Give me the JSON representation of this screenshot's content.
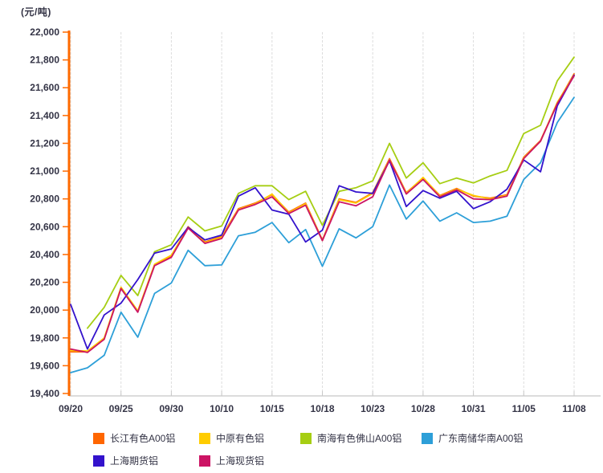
{
  "chart_data": {
    "type": "line",
    "ylabel": "(元/吨)",
    "ylim": [
      19400,
      22000
    ],
    "ytick_step": 200,
    "y_tick_labels": [
      "22,000",
      "21,800",
      "21,600",
      "21,400",
      "21,200",
      "21,000",
      "20,800",
      "20,600",
      "20,400",
      "20,200",
      "20,000",
      "19,800",
      "19,600",
      "19,400"
    ],
    "x_tick_labels": [
      "09/20",
      "09/25",
      "09/30",
      "10/10",
      "10/15",
      "10/18",
      "10/23",
      "10/28",
      "10/31",
      "11/05",
      "11/08"
    ],
    "points_per_interval": 3,
    "grid": "vertical-dashed",
    "legend_position": "bottom",
    "axis_color": "#FF6A00",
    "text_color": "#333345",
    "series": [
      {
        "name": "长江有色A00铝",
        "color": "#FF6600",
        "values": [
          19700,
          19700,
          19795,
          20160,
          19990,
          20325,
          20390,
          20600,
          20490,
          20530,
          20730,
          20770,
          20830,
          20705,
          20770,
          20505,
          20800,
          20775,
          20845,
          21090,
          20845,
          20950,
          20825,
          20875,
          20820,
          20805,
          20830,
          21100,
          21220,
          21490,
          21700
        ]
      },
      {
        "name": "中原有色铝",
        "color": "#FFCC00",
        "values": [
          19710,
          19705,
          19800,
          20165,
          19995,
          20330,
          20395,
          20595,
          20485,
          20525,
          20725,
          20765,
          20835,
          20700,
          20765,
          20500,
          20795,
          20770,
          20840,
          21085,
          20840,
          20955,
          20820,
          20870,
          20825,
          20800,
          20825,
          21095,
          21215,
          21495,
          21690
        ]
      },
      {
        "name": "南海有色佛山A00铝",
        "color": "#A6CE13",
        "values": [
          null,
          19870,
          20020,
          20250,
          20105,
          20420,
          20470,
          20670,
          20570,
          20605,
          20840,
          20895,
          20895,
          20795,
          20855,
          20610,
          20855,
          20880,
          20930,
          21200,
          20950,
          21060,
          20910,
          20950,
          20915,
          20965,
          21005,
          21270,
          21330,
          21650,
          21820
        ]
      },
      {
        "name": "广东南储华南A00铝",
        "color": "#2D9FD8",
        "values": [
          19550,
          19585,
          19675,
          19985,
          19805,
          20120,
          20195,
          20430,
          20320,
          20325,
          20535,
          20560,
          20630,
          20485,
          20580,
          20315,
          20585,
          20520,
          20600,
          20900,
          20655,
          20785,
          20640,
          20700,
          20630,
          20640,
          20675,
          20940,
          21060,
          21350,
          21530
        ]
      },
      {
        "name": "上海期货铝",
        "color": "#3312CC",
        "values": [
          20040,
          19720,
          19965,
          20050,
          20220,
          20410,
          20440,
          20595,
          20505,
          20540,
          20820,
          20880,
          20720,
          20690,
          20490,
          20575,
          20895,
          20850,
          20840,
          21075,
          20745,
          20860,
          20805,
          20855,
          20730,
          20780,
          20870,
          21080,
          20995,
          21470,
          21690
        ]
      },
      {
        "name": "上海现货铝",
        "color": "#CC1464",
        "values": [
          19720,
          19695,
          19790,
          20155,
          19985,
          20320,
          20380,
          20590,
          20480,
          20515,
          20720,
          20760,
          20815,
          20695,
          20755,
          20500,
          20780,
          20750,
          20815,
          21080,
          20835,
          20940,
          20815,
          20865,
          20800,
          20795,
          20820,
          21090,
          21215,
          21485,
          21685
        ]
      }
    ],
    "legend_layout": {
      "rows": [
        {
          "y": 538,
          "item_x": [
            116,
            248,
            374,
            525
          ],
          "series_idx": [
            0,
            1,
            2,
            3
          ]
        },
        {
          "y": 566,
          "item_x": [
            116,
            248
          ],
          "series_idx": [
            4,
            5
          ]
        }
      ]
    }
  }
}
